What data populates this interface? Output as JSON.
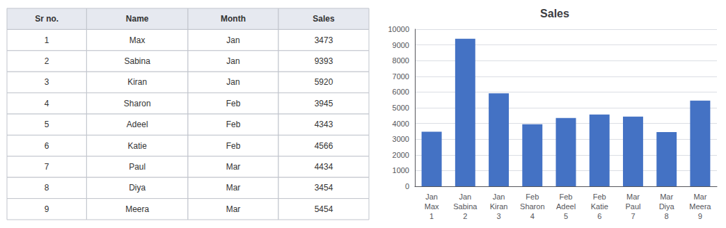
{
  "chart_data": [
    {
      "type": "table",
      "columns": [
        "Sr no.",
        "Name",
        "Month",
        "Sales"
      ],
      "rows": [
        [
          1,
          "Max",
          "Jan",
          3473
        ],
        [
          2,
          "Sabina",
          "Jan",
          9393
        ],
        [
          3,
          "Kiran",
          "Jan",
          5920
        ],
        [
          4,
          "Sharon",
          "Feb",
          3945
        ],
        [
          5,
          "Adeel",
          "Feb",
          4343
        ],
        [
          6,
          "Katie",
          "Feb",
          4566
        ],
        [
          7,
          "Paul",
          "Mar",
          4434
        ],
        [
          8,
          "Diya",
          "Mar",
          3454
        ],
        [
          9,
          "Meera",
          "Mar",
          5454
        ]
      ]
    },
    {
      "type": "bar",
      "title": "Sales",
      "categories": [
        "Jan\nMax\n1",
        "Jan\nSabina\n2",
        "Jan\nKiran\n3",
        "Feb\nSharon\n4",
        "Feb\nAdeel\n5",
        "Feb\nKatie\n6",
        "Mar\nPaul\n7",
        "Mar\nDiya\n8",
        "Mar\nMeera\n9"
      ],
      "values": [
        3473,
        9393,
        5920,
        3945,
        4343,
        4566,
        4434,
        3454,
        5454
      ],
      "color": "#4472c4",
      "ylim": [
        0,
        10000
      ],
      "yticks": [
        0,
        1000,
        2000,
        3000,
        4000,
        5000,
        6000,
        7000,
        8000,
        9000,
        10000
      ],
      "grid": true
    }
  ]
}
